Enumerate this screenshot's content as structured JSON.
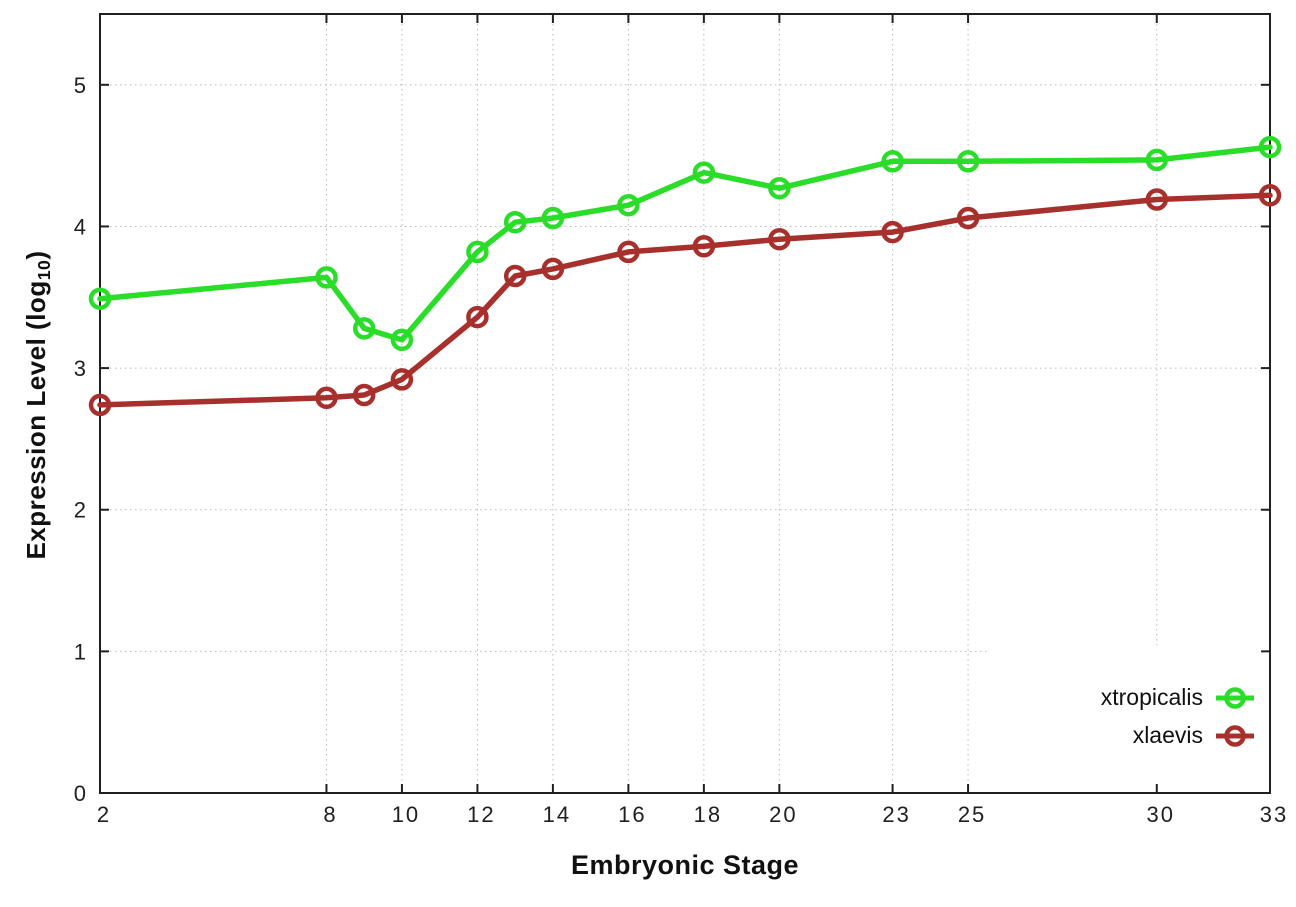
{
  "chart_data": {
    "type": "line",
    "xlabel": "Embryonic Stage",
    "ylabel": "Expression Level (log10)",
    "ylabel_parts": {
      "prefix": "Expression Level (log",
      "sub": "10",
      "suffix": ")"
    },
    "x": [
      2,
      8,
      9,
      10,
      12,
      13,
      14,
      16,
      18,
      20,
      23,
      25,
      30,
      33
    ],
    "series": [
      {
        "name": "xtropicalis",
        "color": "#29dd29",
        "values": [
          3.49,
          3.64,
          3.28,
          3.2,
          3.82,
          4.03,
          4.06,
          4.15,
          4.38,
          4.27,
          4.46,
          4.46,
          4.47,
          4.56
        ]
      },
      {
        "name": "xlaevis",
        "color": "#a8302c",
        "values": [
          2.74,
          2.79,
          2.81,
          2.92,
          3.36,
          3.65,
          3.7,
          3.82,
          3.86,
          3.91,
          3.96,
          4.06,
          4.19,
          4.22
        ]
      }
    ],
    "xticks": [
      2,
      8,
      10,
      12,
      14,
      16,
      18,
      20,
      23,
      25,
      30,
      33
    ],
    "yticks": [
      0,
      1,
      2,
      3,
      4,
      5
    ],
    "xlim": [
      2,
      33
    ],
    "ylim": [
      0,
      5.5
    ],
    "grid": true,
    "legend_position": "inside bottom right",
    "background": "#ffffff",
    "marker": "open-circle"
  }
}
